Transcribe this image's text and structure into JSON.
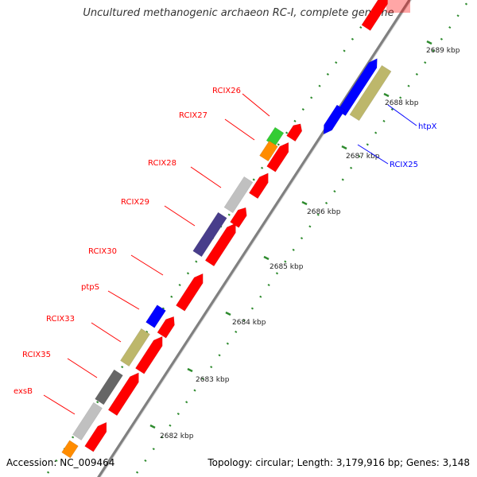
{
  "title": "Uncultured methanogenic archaeon RC-I, complete genome",
  "accession": "Accession: NC_009464",
  "topology": "Topology: circular; Length: 3,179,916 bp; Genes: 3,148",
  "colors": {
    "red": "#ff0000",
    "blue": "#0000ff",
    "khaki": "#bdb76b",
    "green": "#33cc33",
    "orange": "#ff8c00",
    "light_gray": "#c0c0c0",
    "dark_gray": "#666666",
    "slate_blue": "#483d8b",
    "tick_green": "#2e8b2e",
    "backbone": "#808080"
  },
  "ticks": [
    "2689 kbp",
    "2688 kbp",
    "2687 kbp",
    "2686 kbp",
    "2685 kbp",
    "2684 kbp",
    "2683 kbp",
    "2682 kbp"
  ],
  "left_labels": [
    "RCIX26",
    "RCIX27",
    "RCIX28",
    "RCIX29",
    "RCIX30",
    "ptpS",
    "RCIX33",
    "RCIX35",
    "exsB"
  ],
  "right_labels": [
    "htpX",
    "RCIX25"
  ],
  "genes": [
    {
      "label": "RCIX26",
      "track": "outer",
      "color": "green"
    },
    {
      "label": "RCIX27",
      "track": "outer",
      "color": "orange"
    },
    {
      "label": "RCIX28",
      "track": "outer",
      "color": "light_gray"
    },
    {
      "label": "RCIX29",
      "track": "outer",
      "color": "slate_blue"
    },
    {
      "label": "ptpS",
      "track": "outer",
      "color": "blue"
    },
    {
      "label": "RCIX33",
      "track": "outer",
      "color": "khaki"
    },
    {
      "label": "RCIX35",
      "track": "outer",
      "color": "dark_gray"
    },
    {
      "label": "exsB",
      "track": "outer",
      "color": "light_gray"
    },
    {
      "label": "htpX",
      "track": "inner_right",
      "color": "khaki"
    },
    {
      "label": "RCIX25",
      "track": "inner_right",
      "color": "blue"
    }
  ]
}
